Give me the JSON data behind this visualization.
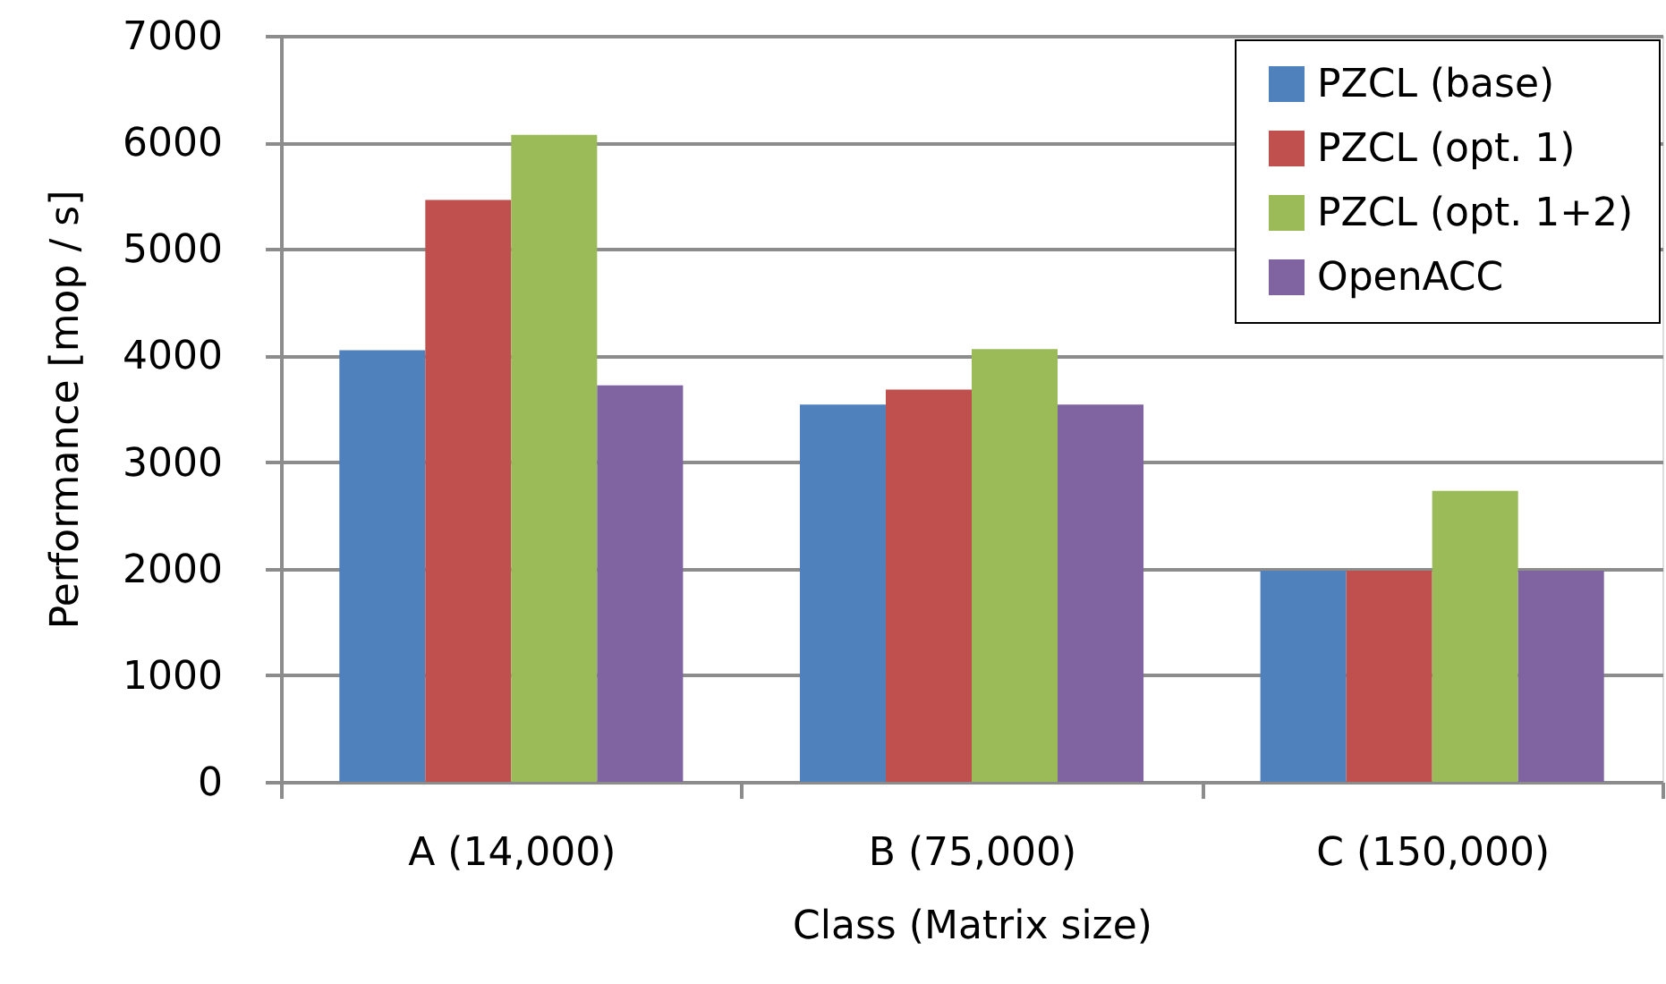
{
  "chart_data": {
    "type": "bar",
    "xlabel": "Class (Matrix size)",
    "ylabel": "Performance [mop / s]",
    "categories": [
      "A (14,000)",
      "B (75,000)",
      "C (150,000)"
    ],
    "series": [
      {
        "name": "PZCL (base)",
        "color": "#4f81bd",
        "values": [
          4050,
          3540,
          1980
        ]
      },
      {
        "name": "PZCL (opt. 1)",
        "color": "#c0504d",
        "values": [
          5460,
          3680,
          1980
        ]
      },
      {
        "name": "PZCL (opt. 1+2)",
        "color": "#9bbb59",
        "values": [
          6070,
          4060,
          2730
        ]
      },
      {
        "name": "OpenACC",
        "color": "#8064a2",
        "values": [
          3720,
          3540,
          1980
        ]
      }
    ],
    "ylim": [
      0,
      7000
    ],
    "yticks": [
      0,
      1000,
      2000,
      3000,
      4000,
      5000,
      6000,
      7000
    ],
    "grid": "y",
    "legend": "top right"
  }
}
